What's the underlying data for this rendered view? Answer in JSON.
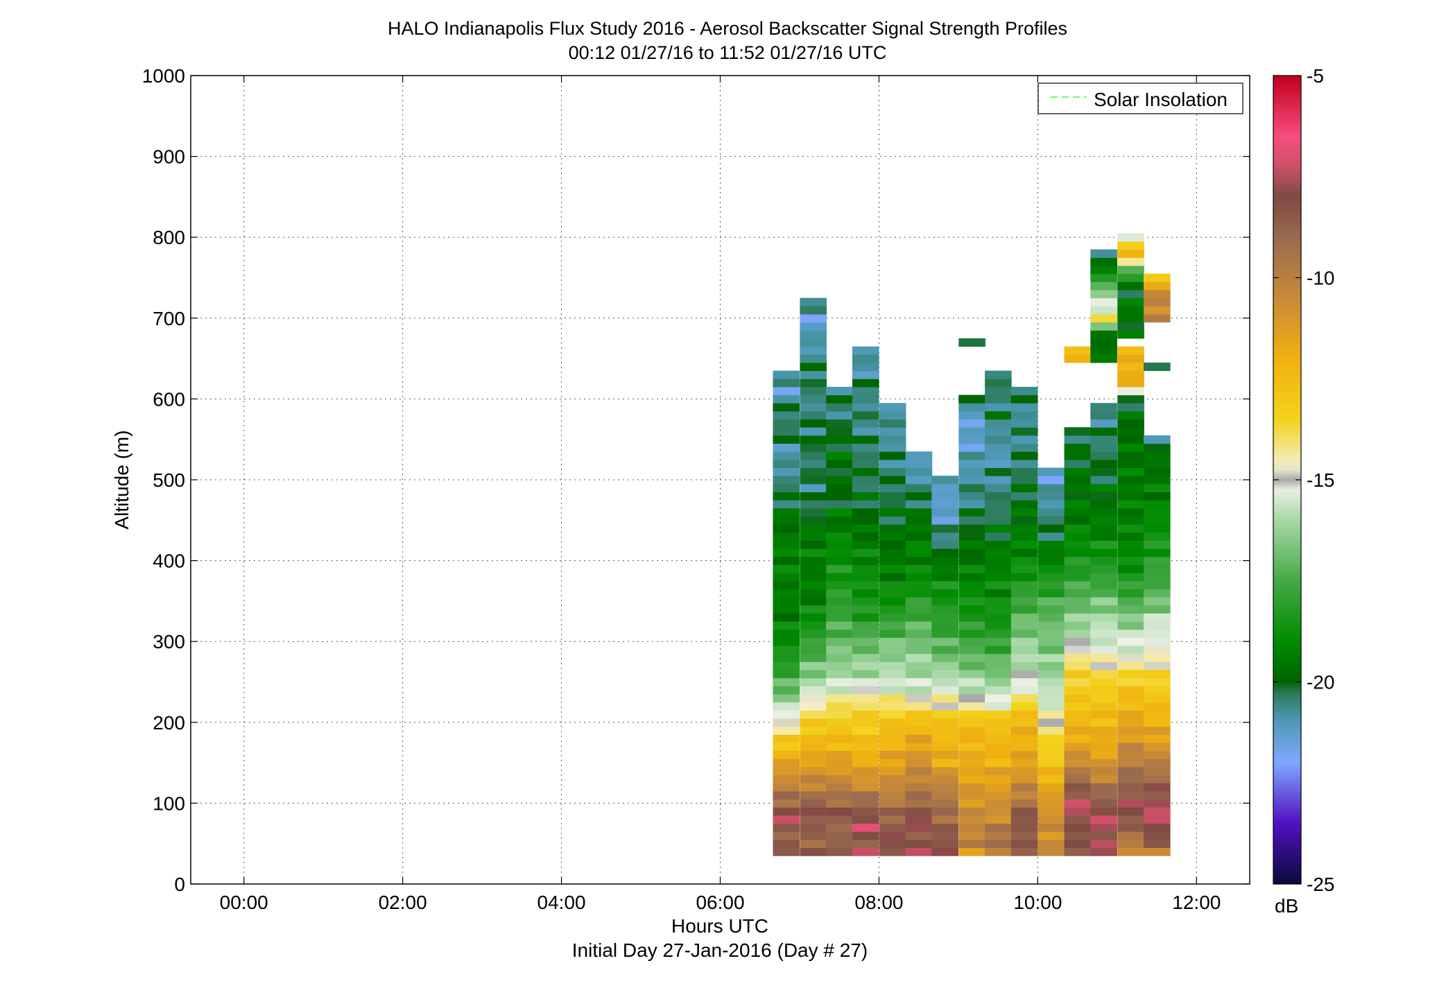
{
  "chart_data": {
    "type": "heatmap",
    "title": "HALO Indianapolis Flux Study 2016 - Aerosol Backscatter Signal Strength Profiles",
    "subtitle": "00:12 01/27/16 to 11:52 01/27/16  UTC",
    "xlabel": "Hours UTC",
    "xlabel2": "Initial Day 27-Jan-2016 (Day # 27)",
    "ylabel": "Altitude (m)",
    "xlim": [
      -0.67,
      12.67
    ],
    "ylim": [
      0,
      1000
    ],
    "x_ticks": [
      0,
      2,
      4,
      6,
      8,
      10,
      12
    ],
    "x_tick_labels": [
      "00:00",
      "02:00",
      "04:00",
      "06:00",
      "08:00",
      "10:00",
      "12:00"
    ],
    "y_ticks": [
      0,
      100,
      200,
      300,
      400,
      500,
      600,
      700,
      800,
      900,
      1000
    ],
    "y_tick_labels": [
      "0",
      "100",
      "200",
      "300",
      "400",
      "500",
      "600",
      "700",
      "800",
      "900",
      "1000"
    ],
    "grid": true,
    "legend": {
      "position": "top-right",
      "entries": [
        {
          "name": "Solar Insolation",
          "color": "#66ff66",
          "style": "dashed"
        }
      ]
    },
    "colorbar": {
      "label": "dB",
      "range": [
        -25,
        -5
      ],
      "ticks": [
        -25,
        -20,
        -15,
        -10,
        -5
      ],
      "tick_labels": [
        "-25",
        "-20",
        "-15",
        "-10",
        "-5"
      ]
    },
    "profiles": [
      {
        "time": 6.83,
        "top": 635,
        "layers": [
          [
            35,
            -10
          ],
          [
            45,
            -8
          ],
          [
            60,
            -9
          ],
          [
            80,
            -7.5
          ],
          [
            100,
            -9
          ],
          [
            120,
            -10
          ],
          [
            150,
            -11.5
          ],
          [
            175,
            -13
          ],
          [
            195,
            -14.5
          ],
          [
            215,
            -15.5
          ],
          [
            240,
            -17
          ],
          [
            280,
            -18.5
          ],
          [
            340,
            -19.5
          ],
          [
            400,
            -19.2
          ],
          [
            460,
            -19.8
          ],
          [
            500,
            -20.5
          ],
          [
            530,
            -21
          ],
          [
            560,
            -20.2
          ],
          [
            590,
            -20.4
          ],
          [
            610,
            -21.3
          ],
          [
            635,
            -20.5
          ]
        ]
      },
      {
        "time": 7.17,
        "top": 725,
        "layers": [
          [
            35,
            -8.5
          ],
          [
            60,
            -9
          ],
          [
            90,
            -8
          ],
          [
            110,
            -9.5
          ],
          [
            140,
            -11
          ],
          [
            180,
            -12.5
          ],
          [
            200,
            -13.3
          ],
          [
            215,
            -14
          ],
          [
            230,
            -15
          ],
          [
            260,
            -16.5
          ],
          [
            300,
            -18
          ],
          [
            360,
            -19.5
          ],
          [
            420,
            -19.3
          ],
          [
            480,
            -20.5
          ],
          [
            540,
            -20.2
          ],
          [
            600,
            -20.6
          ],
          [
            630,
            -20.2
          ],
          [
            660,
            -20.8
          ],
          [
            680,
            -21
          ],
          [
            700,
            -21.5
          ],
          [
            725,
            -20.2
          ]
        ]
      },
      {
        "time": 7.5,
        "top": 615,
        "layers": [
          [
            35,
            -8.5
          ],
          [
            55,
            -9
          ],
          [
            90,
            -8.5
          ],
          [
            110,
            -9.5
          ],
          [
            140,
            -11
          ],
          [
            180,
            -12.5
          ],
          [
            210,
            -13.5
          ],
          [
            230,
            -14.5
          ],
          [
            250,
            -15.8
          ],
          [
            280,
            -16.5
          ],
          [
            320,
            -17.5
          ],
          [
            360,
            -18.2
          ],
          [
            420,
            -19
          ],
          [
            480,
            -20
          ],
          [
            540,
            -19.7
          ],
          [
            580,
            -20.5
          ],
          [
            615,
            -20.3
          ]
        ]
      },
      {
        "time": 7.83,
        "top": 660,
        "layers": [
          [
            35,
            -7.5
          ],
          [
            50,
            -8.5
          ],
          [
            70,
            -7.3
          ],
          [
            100,
            -9
          ],
          [
            130,
            -11
          ],
          [
            180,
            -12.8
          ],
          [
            220,
            -13.6
          ],
          [
            235,
            -14.8
          ],
          [
            250,
            -15.7
          ],
          [
            290,
            -16.8
          ],
          [
            340,
            -18.5
          ],
          [
            400,
            -19
          ],
          [
            460,
            -20
          ],
          [
            520,
            -20.2
          ],
          [
            560,
            -20.5
          ],
          [
            590,
            -20.6
          ],
          [
            615,
            -20.4
          ],
          [
            640,
            -20.9
          ],
          [
            650,
            -21
          ],
          [
            660,
            -20.7
          ]
        ]
      },
      {
        "time": 8.17,
        "top": 595,
        "layers": [
          [
            35,
            -8.5
          ],
          [
            55,
            -8
          ],
          [
            80,
            -8.8
          ],
          [
            110,
            -10
          ],
          [
            150,
            -11.5
          ],
          [
            200,
            -12.8
          ],
          [
            225,
            -14.2
          ],
          [
            245,
            -15.5
          ],
          [
            290,
            -16.5
          ],
          [
            340,
            -18.5
          ],
          [
            400,
            -19.5
          ],
          [
            460,
            -20
          ],
          [
            520,
            -20.5
          ],
          [
            560,
            -20.8
          ],
          [
            595,
            -20.6
          ]
        ]
      },
      {
        "time": 8.5,
        "top": 535,
        "layers": [
          [
            35,
            -7.5
          ],
          [
            55,
            -8.5
          ],
          [
            80,
            -7.8
          ],
          [
            110,
            -9.5
          ],
          [
            160,
            -11
          ],
          [
            200,
            -12.5
          ],
          [
            220,
            -14
          ],
          [
            240,
            -15.7
          ],
          [
            280,
            -16.3
          ],
          [
            330,
            -17.5
          ],
          [
            380,
            -19
          ],
          [
            440,
            -19.5
          ],
          [
            490,
            -20.5
          ],
          [
            510,
            -21
          ],
          [
            535,
            -21.3
          ]
        ]
      },
      {
        "time": 8.83,
        "top": 500,
        "layers": [
          [
            35,
            -7.5
          ],
          [
            55,
            -8.5
          ],
          [
            80,
            -9
          ],
          [
            120,
            -10
          ],
          [
            150,
            -11.8
          ],
          [
            200,
            -12.7
          ],
          [
            220,
            -14.3
          ],
          [
            240,
            -15.2
          ],
          [
            280,
            -16.8
          ],
          [
            320,
            -18
          ],
          [
            380,
            -19
          ],
          [
            420,
            -20.3
          ],
          [
            470,
            -21.5
          ],
          [
            500,
            -20.8
          ]
        ]
      },
      {
        "time": 9.17,
        "top": 675,
        "layers": [
          [
            35,
            -13
          ],
          [
            45,
            -10
          ],
          [
            80,
            -10.5
          ],
          [
            110,
            -11
          ],
          [
            150,
            -11.8
          ],
          [
            200,
            -12.5
          ],
          [
            215,
            -14
          ],
          [
            230,
            -15.2
          ],
          [
            270,
            -16.8
          ],
          [
            320,
            -18.2
          ],
          [
            400,
            -19.5
          ],
          [
            470,
            -20.4
          ],
          [
            540,
            -21.2
          ],
          [
            570,
            -21.5
          ],
          [
            600,
            -20.4
          ],
          [
            665,
            null
          ],
          [
            675,
            -20.5
          ]
        ]
      },
      {
        "time": 9.5,
        "top": 635,
        "layers": [
          [
            35,
            -11
          ],
          [
            50,
            -9
          ],
          [
            80,
            -10.5
          ],
          [
            110,
            -11
          ],
          [
            150,
            -12
          ],
          [
            200,
            -12.7
          ],
          [
            215,
            -14.5
          ],
          [
            230,
            -15.5
          ],
          [
            270,
            -17
          ],
          [
            320,
            -18.5
          ],
          [
            400,
            -19.3
          ],
          [
            480,
            -20.5
          ],
          [
            540,
            -21
          ],
          [
            580,
            -20.3
          ],
          [
            610,
            -20.5
          ],
          [
            635,
            -20.2
          ]
        ]
      },
      {
        "time": 9.83,
        "top": 615,
        "layers": [
          [
            35,
            -8
          ],
          [
            50,
            -8.8
          ],
          [
            80,
            -8.2
          ],
          [
            110,
            -10
          ],
          [
            150,
            -11.5
          ],
          [
            210,
            -12.5
          ],
          [
            235,
            -14.8
          ],
          [
            260,
            -15.5
          ],
          [
            300,
            -16.3
          ],
          [
            340,
            -17.5
          ],
          [
            400,
            -19
          ],
          [
            460,
            -19.7
          ],
          [
            510,
            -20.3
          ],
          [
            540,
            -20.5
          ],
          [
            580,
            -20.7
          ],
          [
            615,
            -20.3
          ]
        ]
      },
      {
        "time": 10.17,
        "top": 510,
        "layers": [
          [
            35,
            -10.5
          ],
          [
            90,
            -10.8
          ],
          [
            130,
            -12
          ],
          [
            150,
            -13
          ],
          [
            175,
            -13.5
          ],
          [
            195,
            -14.3
          ],
          [
            210,
            -15
          ],
          [
            240,
            -15.8
          ],
          [
            280,
            -16.5
          ],
          [
            330,
            -17
          ],
          [
            380,
            -18.5
          ],
          [
            420,
            -19.8
          ],
          [
            450,
            -20.5
          ],
          [
            490,
            -21
          ],
          [
            510,
            -21.5
          ]
        ]
      },
      {
        "time": 10.5,
        "top": 665,
        "layers": [
          [
            35,
            -8
          ],
          [
            60,
            -8.5
          ],
          [
            100,
            -7.5
          ],
          [
            140,
            -9.8
          ],
          [
            170,
            -11.5
          ],
          [
            200,
            -12.3
          ],
          [
            230,
            -13
          ],
          [
            260,
            -13.5
          ],
          [
            280,
            -14.2
          ],
          [
            300,
            -15.5
          ],
          [
            340,
            -16.8
          ],
          [
            400,
            -18.5
          ],
          [
            460,
            -19.5
          ],
          [
            520,
            -19.8
          ],
          [
            560,
            -20.3
          ],
          [
            645,
            null
          ],
          [
            665,
            -12.2
          ]
        ]
      },
      {
        "time": 10.83,
        "top": 785,
        "layers": [
          [
            35,
            -7.3
          ],
          [
            50,
            -8
          ],
          [
            80,
            -7.5
          ],
          [
            110,
            -9
          ],
          [
            160,
            -11.5
          ],
          [
            210,
            -12.5
          ],
          [
            240,
            -13.2
          ],
          [
            260,
            -14
          ],
          [
            290,
            -15.3
          ],
          [
            330,
            -16
          ],
          [
            380,
            -18
          ],
          [
            440,
            -19.3
          ],
          [
            480,
            -19.8
          ],
          [
            520,
            -20.2
          ],
          [
            560,
            -20.4
          ],
          [
            590,
            -20.7
          ],
          [
            645,
            null
          ],
          [
            660,
            -19.8
          ],
          [
            680,
            -19.5
          ],
          [
            700,
            -14
          ],
          [
            720,
            -15.8
          ],
          [
            740,
            -17
          ],
          [
            760,
            -19.5
          ],
          [
            785,
            -20.3
          ]
        ]
      },
      {
        "time": 11.17,
        "top": 800,
        "layers": [
          [
            35,
            -10.5
          ],
          [
            60,
            -9.5
          ],
          [
            90,
            -7.8
          ],
          [
            130,
            -9
          ],
          [
            180,
            -11
          ],
          [
            230,
            -12.5
          ],
          [
            260,
            -13.5
          ],
          [
            280,
            -15
          ],
          [
            310,
            -15.8
          ],
          [
            350,
            -17.5
          ],
          [
            400,
            -19
          ],
          [
            460,
            -19.3
          ],
          [
            540,
            -19.6
          ],
          [
            600,
            -20
          ],
          [
            620,
            -11.5
          ],
          [
            640,
            -12.3
          ],
          [
            660,
            -12
          ],
          [
            670,
            null
          ],
          [
            695,
            -19.7
          ],
          [
            720,
            -19.5
          ],
          [
            740,
            -20
          ],
          [
            760,
            -16.8
          ],
          [
            780,
            -12.2
          ],
          [
            800,
            -14.8
          ]
        ]
      },
      {
        "time": 11.5,
        "top": 755,
        "layers": [
          [
            35,
            -10.5
          ],
          [
            60,
            -8
          ],
          [
            90,
            -7.3
          ],
          [
            130,
            -9
          ],
          [
            180,
            -11.5
          ],
          [
            230,
            -12.8
          ],
          [
            260,
            -13.8
          ],
          [
            290,
            -15
          ],
          [
            320,
            -15.5
          ],
          [
            360,
            -17.3
          ],
          [
            420,
            -18.5
          ],
          [
            480,
            -19.3
          ],
          [
            530,
            -19.7
          ],
          [
            550,
            -20.5
          ],
          [
            635,
            null
          ],
          [
            645,
            -19.8
          ],
          [
            695,
            null
          ],
          [
            705,
            -10.5
          ],
          [
            725,
            -10
          ],
          [
            745,
            -12.3
          ],
          [
            755,
            -13.5
          ]
        ]
      }
    ]
  }
}
